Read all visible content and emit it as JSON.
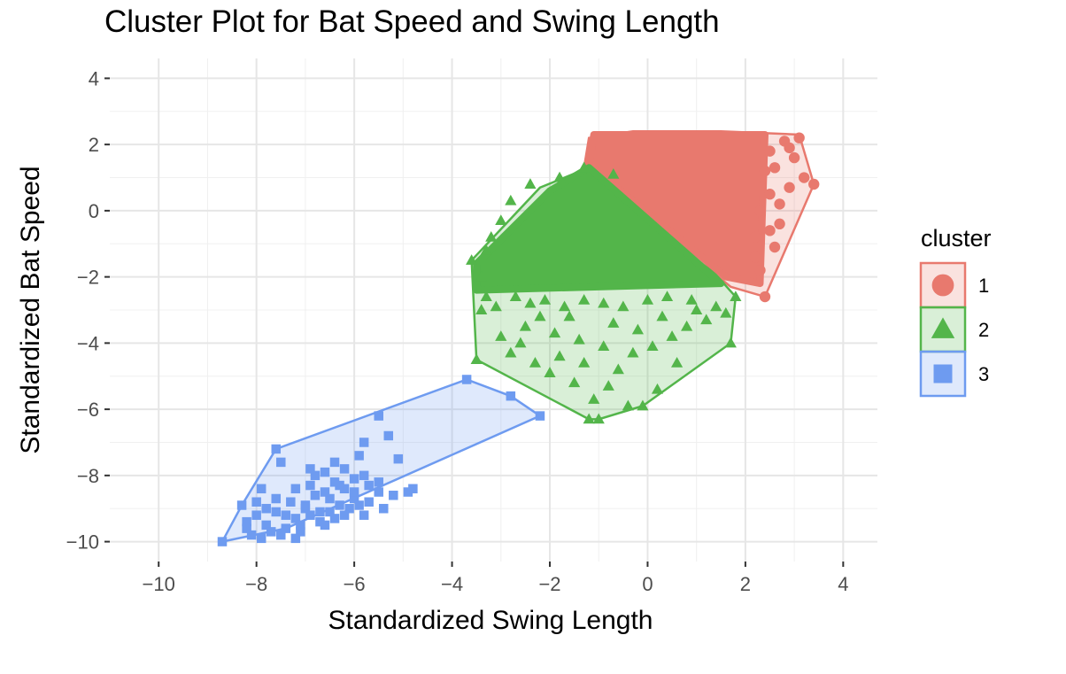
{
  "chart_data": {
    "type": "scatter",
    "title": "Cluster Plot for Bat Speed and Swing Length",
    "xlabel": "Standardized Swing Length",
    "ylabel": "Standardized Bat Speed",
    "xlim": [
      -11.0,
      4.7
    ],
    "ylim": [
      -10.6,
      4.6
    ],
    "x_ticks": [
      -10,
      -8,
      -6,
      -4,
      -2,
      0,
      2,
      4
    ],
    "x_tick_labels": [
      "−10",
      "−8",
      "−6",
      "−4",
      "−2",
      "0",
      "2",
      "4"
    ],
    "y_ticks": [
      -10,
      -8,
      -6,
      -4,
      -2,
      0,
      2,
      4
    ],
    "y_tick_labels": [
      "−10",
      "−8",
      "−6",
      "−4",
      "−2",
      "0",
      "2",
      "4"
    ],
    "grid": true,
    "legend": {
      "title": "cluster",
      "position": "right"
    },
    "series": [
      {
        "name": "1",
        "color": "#E8796E",
        "marker": "circle",
        "hull": [
          [
            -1.2,
            2.2
          ],
          [
            -0.3,
            2.4
          ],
          [
            1.5,
            2.4
          ],
          [
            3.1,
            2.3
          ],
          [
            3.4,
            0.8
          ],
          [
            2.4,
            -2.6
          ],
          [
            1.7,
            -2.3
          ],
          [
            -1.3,
            1.3
          ],
          [
            -1.2,
            2.2
          ]
        ],
        "core": [
          [
            -1.1,
            2.3
          ],
          [
            2.4,
            2.3
          ],
          [
            2.3,
            -2.2
          ],
          [
            1.6,
            -2.0
          ],
          [
            -1.2,
            1.4
          ]
        ],
        "points": [
          [
            3.4,
            0.8
          ],
          [
            3.1,
            2.2
          ],
          [
            2.8,
            2.1
          ],
          [
            3.0,
            1.6
          ],
          [
            2.9,
            0.7
          ],
          [
            3.2,
            1.0
          ],
          [
            2.7,
            0.2
          ],
          [
            2.5,
            -0.6
          ],
          [
            2.6,
            -1.1
          ],
          [
            2.4,
            -2.6
          ],
          [
            2.3,
            -1.8
          ],
          [
            2.2,
            -1.4
          ],
          [
            2.7,
            -0.4
          ],
          [
            2.5,
            0.5
          ],
          [
            2.6,
            1.3
          ],
          [
            2.9,
            1.9
          ],
          [
            2.5,
            1.8
          ],
          [
            2.4,
            1.2
          ],
          [
            2.3,
            0.0
          ],
          [
            2.2,
            -0.8
          ]
        ]
      },
      {
        "name": "2",
        "color": "#53B54A",
        "marker": "triangle",
        "hull": [
          [
            -2.2,
            0.7
          ],
          [
            -1.2,
            1.3
          ],
          [
            -0.5,
            1.2
          ],
          [
            1.8,
            -2.6
          ],
          [
            1.7,
            -4.0
          ],
          [
            -0.1,
            -5.9
          ],
          [
            -1.0,
            -6.3
          ],
          [
            -1.2,
            -6.3
          ],
          [
            -3.5,
            -4.5
          ],
          [
            -3.6,
            -1.5
          ],
          [
            -2.2,
            0.7
          ]
        ],
        "core": [
          [
            -2.0,
            0.6
          ],
          [
            -1.2,
            1.3
          ],
          [
            1.5,
            -2.2
          ],
          [
            -3.5,
            -2.4
          ],
          [
            -3.5,
            -1.6
          ]
        ],
        "points": [
          [
            -3.6,
            -1.5
          ],
          [
            -3.5,
            -4.5
          ],
          [
            -3.4,
            -3.0
          ],
          [
            -3.3,
            -2.6
          ],
          [
            -3.0,
            -3.8
          ],
          [
            -2.8,
            -4.3
          ],
          [
            -2.6,
            -4.0
          ],
          [
            -2.5,
            -3.5
          ],
          [
            -2.3,
            -4.6
          ],
          [
            -2.2,
            -3.2
          ],
          [
            -2.0,
            -4.9
          ],
          [
            -1.9,
            -3.7
          ],
          [
            -1.8,
            -4.4
          ],
          [
            -1.6,
            -3.2
          ],
          [
            -1.5,
            -5.2
          ],
          [
            -1.4,
            -3.9
          ],
          [
            -1.3,
            -4.6
          ],
          [
            -1.2,
            -6.3
          ],
          [
            -1.1,
            -5.7
          ],
          [
            -1.0,
            -6.3
          ],
          [
            -0.9,
            -4.1
          ],
          [
            -0.8,
            -5.3
          ],
          [
            -0.7,
            -3.4
          ],
          [
            -0.6,
            -4.8
          ],
          [
            -0.4,
            -5.9
          ],
          [
            -0.3,
            -4.3
          ],
          [
            -0.2,
            -3.6
          ],
          [
            -0.1,
            -5.9
          ],
          [
            0.1,
            -4.1
          ],
          [
            0.2,
            -5.4
          ],
          [
            0.3,
            -3.2
          ],
          [
            0.5,
            -3.8
          ],
          [
            0.6,
            -4.6
          ],
          [
            0.8,
            -3.5
          ],
          [
            1.0,
            -3.0
          ],
          [
            1.2,
            -3.3
          ],
          [
            1.4,
            -2.9
          ],
          [
            1.6,
            -3.1
          ],
          [
            1.7,
            -4.0
          ],
          [
            1.8,
            -2.6
          ],
          [
            -3.4,
            -2.0
          ],
          [
            -3.1,
            -2.9
          ],
          [
            -2.7,
            -2.6
          ],
          [
            -2.4,
            -2.8
          ],
          [
            -2.1,
            -2.7
          ],
          [
            -1.7,
            -2.9
          ],
          [
            -1.3,
            -2.7
          ],
          [
            -0.9,
            -2.8
          ],
          [
            -0.5,
            -2.9
          ],
          [
            0.0,
            -2.7
          ],
          [
            0.4,
            -2.6
          ],
          [
            0.9,
            -2.7
          ],
          [
            -2.4,
            0.8
          ],
          [
            -2.8,
            0.3
          ],
          [
            -3.0,
            -0.3
          ],
          [
            -3.2,
            -0.8
          ],
          [
            -1.8,
            1.0
          ],
          [
            -1.3,
            1.3
          ],
          [
            -0.7,
            1.1
          ],
          [
            -3.3,
            -1.2
          ]
        ]
      },
      {
        "name": "3",
        "color": "#6E9BF0",
        "marker": "square",
        "hull": [
          [
            -7.6,
            -7.2
          ],
          [
            -3.7,
            -5.1
          ],
          [
            -2.8,
            -5.6
          ],
          [
            -2.2,
            -6.2
          ],
          [
            -7.4,
            -9.6
          ],
          [
            -8.7,
            -10.0
          ],
          [
            -8.3,
            -8.9
          ],
          [
            -7.6,
            -7.2
          ]
        ],
        "points": [
          [
            -7.6,
            -7.2
          ],
          [
            -7.5,
            -7.6
          ],
          [
            -7.2,
            -8.4
          ],
          [
            -6.9,
            -7.8
          ],
          [
            -6.8,
            -8.0
          ],
          [
            -6.6,
            -7.9
          ],
          [
            -6.4,
            -8.2
          ],
          [
            -6.2,
            -7.8
          ],
          [
            -6.0,
            -8.1
          ],
          [
            -5.9,
            -7.4
          ],
          [
            -5.8,
            -8.0
          ],
          [
            -5.7,
            -8.3
          ],
          [
            -5.5,
            -8.5
          ],
          [
            -5.3,
            -6.8
          ],
          [
            -5.1,
            -7.5
          ],
          [
            -5.5,
            -6.2
          ],
          [
            -3.7,
            -5.1
          ],
          [
            -2.8,
            -5.6
          ],
          [
            -2.2,
            -6.2
          ],
          [
            -5.8,
            -7.0
          ],
          [
            -6.3,
            -8.9
          ],
          [
            -6.5,
            -9.1
          ],
          [
            -6.7,
            -9.4
          ],
          [
            -7.0,
            -9.0
          ],
          [
            -7.2,
            -9.3
          ],
          [
            -7.4,
            -9.6
          ],
          [
            -7.6,
            -9.1
          ],
          [
            -7.8,
            -9.5
          ],
          [
            -8.0,
            -9.2
          ],
          [
            -8.2,
            -9.6
          ],
          [
            -8.3,
            -8.9
          ],
          [
            -8.7,
            -10.0
          ],
          [
            -7.9,
            -9.9
          ],
          [
            -7.5,
            -9.8
          ],
          [
            -7.1,
            -9.7
          ],
          [
            -6.9,
            -9.2
          ],
          [
            -6.6,
            -9.5
          ],
          [
            -6.4,
            -9.3
          ],
          [
            -6.1,
            -9.0
          ],
          [
            -6.0,
            -8.7
          ],
          [
            -5.7,
            -8.8
          ],
          [
            -5.4,
            -9.0
          ],
          [
            -5.2,
            -8.6
          ],
          [
            -4.9,
            -8.5
          ],
          [
            -4.8,
            -8.4
          ],
          [
            -6.2,
            -8.4
          ],
          [
            -6.5,
            -8.7
          ],
          [
            -6.8,
            -8.6
          ],
          [
            -7.0,
            -8.9
          ],
          [
            -7.3,
            -8.8
          ],
          [
            -7.6,
            -8.7
          ],
          [
            -7.8,
            -9.0
          ],
          [
            -8.0,
            -8.8
          ],
          [
            -8.2,
            -9.4
          ],
          [
            -7.4,
            -9.2
          ],
          [
            -7.1,
            -9.5
          ],
          [
            -6.7,
            -9.1
          ],
          [
            -6.3,
            -8.3
          ],
          [
            -6.0,
            -8.5
          ],
          [
            -5.8,
            -9.2
          ],
          [
            -5.5,
            -8.2
          ],
          [
            -5.9,
            -8.9
          ],
          [
            -6.9,
            -8.3
          ],
          [
            -7.2,
            -9.9
          ],
          [
            -7.7,
            -9.7
          ],
          [
            -8.1,
            -9.8
          ],
          [
            -6.4,
            -7.6
          ],
          [
            -6.6,
            -8.5
          ],
          [
            -7.9,
            -8.4
          ],
          [
            -6.2,
            -9.2
          ]
        ]
      }
    ]
  }
}
